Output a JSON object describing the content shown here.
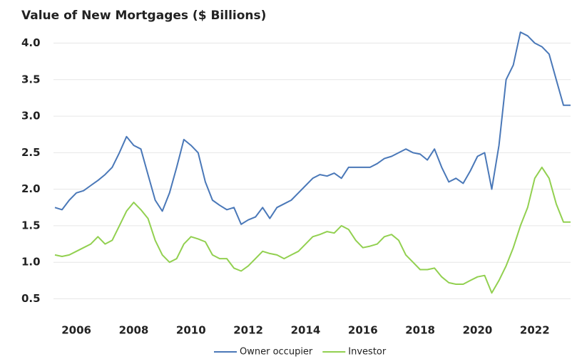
{
  "chart_data": {
    "type": "line",
    "title": "Value of New Mortgages ($ Billions)",
    "x": [
      2005.25,
      2005.5,
      2005.75,
      2006,
      2006.25,
      2006.5,
      2006.75,
      2007,
      2007.25,
      2007.5,
      2007.75,
      2008,
      2008.25,
      2008.5,
      2008.75,
      2009,
      2009.25,
      2009.5,
      2009.75,
      2010,
      2010.25,
      2010.5,
      2010.75,
      2011,
      2011.25,
      2011.5,
      2011.75,
      2012,
      2012.25,
      2012.5,
      2012.75,
      2013,
      2013.25,
      2013.5,
      2013.75,
      2014,
      2014.25,
      2014.5,
      2014.75,
      2015,
      2015.25,
      2015.5,
      2015.75,
      2016,
      2016.25,
      2016.5,
      2016.75,
      2017,
      2017.25,
      2017.5,
      2017.75,
      2018,
      2018.25,
      2018.5,
      2018.75,
      2019,
      2019.25,
      2019.5,
      2019.75,
      2020,
      2020.25,
      2020.5,
      2020.75,
      2021,
      2021.25,
      2021.5,
      2021.75,
      2022,
      2022.25,
      2022.5,
      2022.75,
      2023,
      2023.25
    ],
    "series": [
      {
        "name": "Owner occupier",
        "color": "#4a78b8",
        "values": [
          1.75,
          1.72,
          1.85,
          1.95,
          1.98,
          2.05,
          2.12,
          2.2,
          2.3,
          2.5,
          2.72,
          2.6,
          2.55,
          2.2,
          1.85,
          1.7,
          1.95,
          2.3,
          2.68,
          2.6,
          2.5,
          2.1,
          1.85,
          1.78,
          1.72,
          1.75,
          1.52,
          1.58,
          1.62,
          1.75,
          1.6,
          1.75,
          1.8,
          1.85,
          1.95,
          2.05,
          2.15,
          2.2,
          2.18,
          2.22,
          2.15,
          2.3,
          2.3,
          2.3,
          2.3,
          2.35,
          2.42,
          2.45,
          2.5,
          2.55,
          2.5,
          2.48,
          2.4,
          2.55,
          2.3,
          2.1,
          2.15,
          2.08,
          2.25,
          2.45,
          2.5,
          2.0,
          2.6,
          3.5,
          3.7,
          4.15,
          4.1,
          4.0,
          3.95,
          3.85,
          3.5,
          3.15,
          3.15
        ]
      },
      {
        "name": "Investor",
        "color": "#92d050",
        "values": [
          1.1,
          1.08,
          1.1,
          1.15,
          1.2,
          1.25,
          1.35,
          1.25,
          1.3,
          1.5,
          1.7,
          1.82,
          1.72,
          1.6,
          1.3,
          1.1,
          1.0,
          1.05,
          1.25,
          1.35,
          1.32,
          1.28,
          1.1,
          1.05,
          1.05,
          0.92,
          0.88,
          0.95,
          1.05,
          1.15,
          1.12,
          1.1,
          1.05,
          1.1,
          1.15,
          1.25,
          1.35,
          1.38,
          1.42,
          1.4,
          1.5,
          1.45,
          1.3,
          1.2,
          1.22,
          1.25,
          1.35,
          1.38,
          1.3,
          1.1,
          1.0,
          0.9,
          0.9,
          0.92,
          0.8,
          0.72,
          0.7,
          0.7,
          0.75,
          0.8,
          0.82,
          0.58,
          0.75,
          0.95,
          1.2,
          1.5,
          1.75,
          2.15,
          2.3,
          2.15,
          1.8,
          1.55,
          1.55
        ]
      }
    ],
    "xlim": [
      2005.2,
      2023.25
    ],
    "xticks": [
      2006,
      2008,
      2010,
      2012,
      2014,
      2016,
      2018,
      2020,
      2022
    ],
    "ylim": [
      0.3,
      4.2
    ],
    "yticks": [
      0.5,
      {
        "value": 1,
        "label": "1.0"
      },
      1.5,
      {
        "value": 2,
        "label": "2.0"
      },
      2.5,
      {
        "value": 3,
        "label": "3.0"
      },
      3.5,
      {
        "value": 4,
        "label": "4.0"
      }
    ],
    "grid": true,
    "legend": "bottom"
  }
}
